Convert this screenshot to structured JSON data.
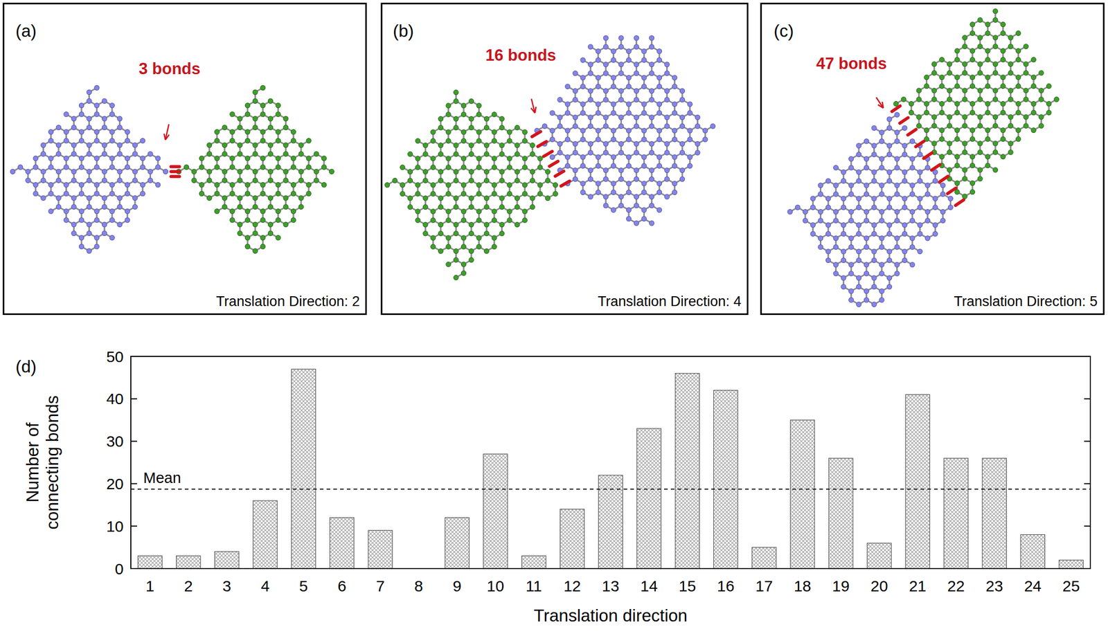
{
  "panels": [
    {
      "letter": "(a)",
      "annotation": "3 bonds",
      "caption": "Translation Direction: 2"
    },
    {
      "letter": "(b)",
      "annotation": "16 bonds",
      "caption": "Translation Direction: 4"
    },
    {
      "letter": "(c)",
      "annotation": "47 bonds",
      "caption": "Translation Direction: 5"
    }
  ],
  "chart_data": {
    "type": "bar",
    "panel_letter": "(d)",
    "x_label": "Translation direction",
    "y_label": "Number of connecting bonds",
    "categories": [
      "1",
      "2",
      "3",
      "4",
      "5",
      "6",
      "7",
      "8",
      "9",
      "10",
      "11",
      "12",
      "13",
      "14",
      "15",
      "16",
      "17",
      "18",
      "19",
      "20",
      "21",
      "22",
      "23",
      "24",
      "25"
    ],
    "values": [
      3,
      3,
      4,
      16,
      47,
      12,
      9,
      0,
      12,
      27,
      3,
      14,
      22,
      33,
      46,
      42,
      5,
      35,
      26,
      6,
      41,
      26,
      26,
      8,
      2
    ],
    "color": "#9a9a9a",
    "ylim": [
      0,
      50
    ],
    "yticks": [
      0,
      10,
      20,
      30,
      40,
      50
    ],
    "grid": false,
    "annotations": [
      {
        "text": "Mean",
        "value": 18.72,
        "line_style": "dashed"
      }
    ]
  }
}
